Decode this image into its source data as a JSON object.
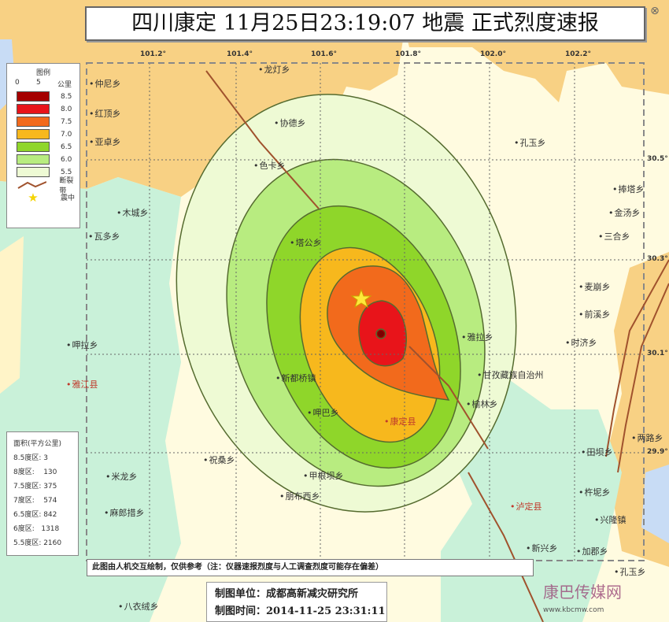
{
  "title": "四川康定  11月25日23:19:07  地震  正式烈度速报",
  "longitudes": [
    "101.2°",
    "101.4°",
    "101.6°",
    "101.8°",
    "102.0°",
    "102.2°"
  ],
  "latitudes": [
    "30.5°",
    "30.3°",
    "30.1°",
    "29.9°"
  ],
  "legend": {
    "title": "图例",
    "scale": [
      "0",
      "5",
      "公里"
    ],
    "items": [
      {
        "label": "8.5",
        "color": "#a50000"
      },
      {
        "label": "8.0",
        "color": "#e8141a"
      },
      {
        "label": "7.5",
        "color": "#f26a1c"
      },
      {
        "label": "7.0",
        "color": "#f7b81d"
      },
      {
        "label": "6.5",
        "color": "#8fd62a"
      },
      {
        "label": "6.0",
        "color": "#b8ec80"
      },
      {
        "label": "5.5",
        "color": "#eefad4"
      }
    ],
    "fault_label": "断裂带",
    "epicenter_label": "震中"
  },
  "area_table": {
    "title": "面积(平方公里)",
    "rows": [
      "8.5度区: 3",
      "8度区:    130",
      "7.5度区: 375",
      "7度区:    574",
      "6.5度区: 842",
      "6度区:   1318",
      "5.5度区: 2160"
    ]
  },
  "places": [
    "龙灯乡",
    "仲尼乡",
    "红顶乡",
    "亚卓乡",
    "协德乡",
    "色卡乡",
    "木城乡",
    "瓦多乡",
    "塔公乡",
    "孔玉乡",
    "捧塔乡",
    "金汤乡",
    "三合乡",
    "麦崩乡",
    "前溪乡",
    "时济乡",
    "雅拉乡",
    "甘孜藏族自治州",
    "新都桥镇",
    "呷巴乡",
    "康定县",
    "榆林乡",
    "呷拉乡",
    "雅江县",
    "祝桑乡",
    "米龙乡",
    "麻郎措乡",
    "甲根坝乡",
    "朋布西乡",
    "泸定县",
    "杵坭乡",
    "兴隆镇",
    "新兴乡",
    "加郡乡",
    "八衣绒乡",
    "田坝乡",
    "孔玉乡",
    "两路乡"
  ],
  "note": "此图由人机交互绘制，仅供参考（注：仪器速报烈度与人工调查烈度可能存在偏差）",
  "credit": {
    "unit": "制图单位：成都高新减灾研究所",
    "time": "制图时间：2014-11-25 23:31:11"
  },
  "watermark": {
    "name": "康巴传媒网",
    "url": "www.kbcmw.com"
  }
}
